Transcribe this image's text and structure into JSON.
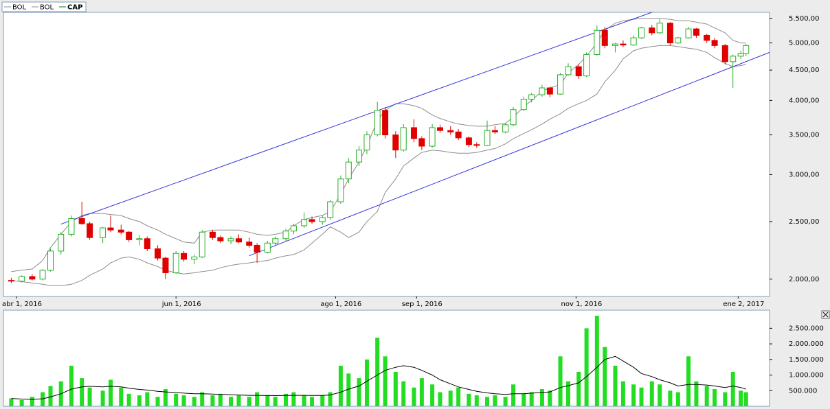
{
  "chart_data": [
    {
      "type": "candlestick",
      "x": [
        "2016-03-30",
        "2016-04-03",
        "2016-04-07",
        "2016-04-11",
        "2016-04-14",
        "2016-04-18",
        "2016-04-22",
        "2016-04-26",
        "2016-04-29",
        "2016-05-04",
        "2016-05-07",
        "2016-05-11",
        "2016-05-14",
        "2016-05-18",
        "2016-05-21",
        "2016-05-25",
        "2016-05-28",
        "2016-06-01",
        "2016-06-04",
        "2016-06-08",
        "2016-06-11",
        "2016-06-15",
        "2016-06-18",
        "2016-06-22",
        "2016-06-25",
        "2016-06-29",
        "2016-07-02",
        "2016-07-06",
        "2016-07-09",
        "2016-07-13",
        "2016-07-16",
        "2016-07-20",
        "2016-07-23",
        "2016-07-27",
        "2016-07-30",
        "2016-08-03",
        "2016-08-06",
        "2016-08-10",
        "2016-08-13",
        "2016-08-17",
        "2016-08-20",
        "2016-08-24",
        "2016-08-27",
        "2016-08-31",
        "2016-09-03",
        "2016-09-07",
        "2016-09-10",
        "2016-09-14",
        "2016-09-17",
        "2016-09-21",
        "2016-09-24",
        "2016-09-28",
        "2016-10-01",
        "2016-10-05",
        "2016-10-08",
        "2016-10-12",
        "2016-10-15",
        "2016-10-19",
        "2016-10-22",
        "2016-10-26",
        "2016-10-29",
        "2016-11-02",
        "2016-11-05",
        "2016-11-09",
        "2016-11-12",
        "2016-11-16",
        "2016-11-19",
        "2016-11-23",
        "2016-11-26",
        "2016-11-30",
        "2016-12-03",
        "2016-12-07",
        "2016-12-10",
        "2016-12-14",
        "2016-12-17",
        "2016-12-21",
        "2016-12-24",
        "2016-12-28",
        "2016-12-31",
        "2017-01-03",
        "2017-01-05"
      ],
      "series": [
        {
          "name": "BOL",
          "color": "#8c8c8c",
          "values": [
            2060,
            2070,
            2080,
            2150,
            2260,
            2380,
            2500,
            2560,
            2580,
            2580,
            2570,
            2560,
            2530,
            2500,
            2460,
            2420,
            2380,
            2340,
            2310,
            2300,
            2400,
            2420,
            2420,
            2420,
            2420,
            2400,
            2380,
            2370,
            2380,
            2400,
            2460,
            2520,
            2540,
            2560,
            2600,
            2780,
            2950,
            3150,
            3350,
            3700,
            3850,
            3950,
            3950,
            3920,
            3880,
            3780,
            3730,
            3680,
            3650,
            3630,
            3620,
            3620,
            3640,
            3660,
            3750,
            3900,
            4000,
            4150,
            4200,
            4250,
            4450,
            4600,
            4750,
            5000,
            5250,
            5400,
            5450,
            5480,
            5500,
            5500,
            5500,
            5480,
            5450,
            5450,
            5420,
            5380,
            5300,
            5200,
            5050,
            5000,
            5000
          ]
        },
        {
          "name": "BOL",
          "color": "#8c8c8c",
          "values": [
            1990,
            1980,
            1970,
            1960,
            1950,
            1950,
            1960,
            1990,
            2030,
            2080,
            2130,
            2170,
            2180,
            2160,
            2130,
            2100,
            2070,
            2050,
            2040,
            2050,
            2060,
            2070,
            2090,
            2110,
            2120,
            2130,
            2140,
            2150,
            2170,
            2190,
            2200,
            2240,
            2300,
            2380,
            2450,
            2400,
            2350,
            2400,
            2500,
            2600,
            2800,
            2950,
            3100,
            3200,
            3270,
            3300,
            3290,
            3270,
            3260,
            3260,
            3270,
            3300,
            3320,
            3380,
            3450,
            3520,
            3570,
            3650,
            3720,
            3800,
            3880,
            3950,
            4000,
            4100,
            4300,
            4500,
            4700,
            4850,
            4900,
            4930,
            4950,
            4950,
            4930,
            4900,
            4880,
            4820,
            4720,
            4620,
            4560,
            4580,
            4600
          ]
        },
        {
          "name": "CAP",
          "color": "#008000",
          "up_color": "#22b022",
          "down_color": "#e00000",
          "open": [
            1990,
            1985,
            2020,
            2000,
            2070,
            2230,
            2380,
            2530,
            2480,
            2350,
            2440,
            2420,
            2400,
            2330,
            2340,
            2250,
            2170,
            2050,
            2210,
            2160,
            2180,
            2400,
            2350,
            2320,
            2340,
            2310,
            2280,
            2220,
            2300,
            2340,
            2410,
            2460,
            2520,
            2500,
            2540,
            2700,
            2950,
            3150,
            3300,
            3500,
            3850,
            3500,
            3300,
            3600,
            3450,
            3350,
            3600,
            3560,
            3540,
            3460,
            3370,
            3360,
            3560,
            3540,
            3640,
            3860,
            4020,
            4090,
            4200,
            4100,
            4420,
            4560,
            4400,
            4780,
            5250,
            4950,
            4980,
            4960,
            5100,
            5300,
            5200,
            5400,
            5000,
            5100,
            5280,
            5150,
            5050,
            4950,
            4650,
            4750,
            4800
          ],
          "high": [
            2010,
            2030,
            2040,
            2080,
            2250,
            2400,
            2560,
            2700,
            2500,
            2450,
            2560,
            2470,
            2410,
            2370,
            2360,
            2280,
            2180,
            2230,
            2230,
            2200,
            2420,
            2420,
            2370,
            2360,
            2380,
            2350,
            2300,
            2320,
            2360,
            2430,
            2480,
            2590,
            2550,
            2560,
            2720,
            2990,
            3200,
            3350,
            3550,
            3980,
            3900,
            3550,
            3650,
            3720,
            3480,
            3650,
            3640,
            3620,
            3580,
            3480,
            3400,
            3700,
            3620,
            3660,
            3900,
            4060,
            4120,
            4250,
            4220,
            4450,
            4620,
            4600,
            4820,
            5350,
            5320,
            5000,
            5050,
            5150,
            5320,
            5360,
            5480,
            5420,
            5120,
            5320,
            5300,
            5180,
            5100,
            4980,
            4780,
            4850,
            4980
          ],
          "low": [
            1970,
            1975,
            1990,
            1990,
            2060,
            2200,
            2360,
            2470,
            2330,
            2300,
            2400,
            2380,
            2310,
            2280,
            2230,
            2150,
            2000,
            2040,
            2140,
            2120,
            2170,
            2330,
            2300,
            2290,
            2300,
            2260,
            2130,
            2210,
            2280,
            2320,
            2380,
            2440,
            2480,
            2470,
            2520,
            2680,
            2900,
            3100,
            3250,
            3480,
            3450,
            3200,
            3280,
            3400,
            3300,
            3330,
            3530,
            3500,
            3430,
            3340,
            3330,
            3350,
            3510,
            3520,
            3620,
            3840,
            3970,
            4060,
            4050,
            4090,
            4400,
            4350,
            4380,
            4760,
            4900,
            4820,
            4920,
            4940,
            5080,
            5150,
            5180,
            4950,
            4980,
            5080,
            5100,
            5000,
            4900,
            4600,
            4200,
            4700,
            4750
          ],
          "close": [
            1985,
            2020,
            2000,
            2070,
            2230,
            2380,
            2530,
            2480,
            2350,
            2440,
            2420,
            2400,
            2330,
            2340,
            2250,
            2170,
            2050,
            2210,
            2160,
            2180,
            2400,
            2350,
            2320,
            2340,
            2310,
            2280,
            2220,
            2300,
            2340,
            2410,
            2460,
            2520,
            2500,
            2540,
            2700,
            2950,
            3150,
            3300,
            3500,
            3850,
            3500,
            3300,
            3600,
            3450,
            3350,
            3600,
            3560,
            3540,
            3460,
            3370,
            3360,
            3560,
            3540,
            3640,
            3860,
            4020,
            4090,
            4200,
            4100,
            4420,
            4560,
            4400,
            4780,
            5250,
            4950,
            4980,
            4960,
            5100,
            5300,
            5200,
            5400,
            5000,
            5100,
            5280,
            5150,
            5050,
            4950,
            4650,
            4750,
            4800,
            4950
          ]
        }
      ],
      "log_scale": true,
      "ylim": [
        1870,
        5630
      ],
      "yticks": [
        {
          "value": 2000,
          "label": "2.000,00"
        },
        {
          "value": 2500,
          "label": "2.500,00"
        },
        {
          "value": 3000,
          "label": "3.000,00"
        },
        {
          "value": 3500,
          "label": "3.500,00"
        },
        {
          "value": 4000,
          "label": "4.000,00"
        },
        {
          "value": 4500,
          "label": "4.500,00"
        },
        {
          "value": 5000,
          "label": "5.000,00"
        },
        {
          "value": 5500,
          "label": "5.500,00"
        }
      ],
      "xlim": [
        "2016-03-27",
        "2017-01-14"
      ],
      "xticks": [
        {
          "value": "2016-04-01",
          "label": "abr 1, 2016"
        },
        {
          "value": "2016-06-01",
          "label": "jun 1, 2016"
        },
        {
          "value": "2016-08-01",
          "label": "ago 1, 2016"
        },
        {
          "value": "2016-09-01",
          "label": "sep 1, 2016"
        },
        {
          "value": "2016-11-01",
          "label": "nov 1, 2016"
        },
        {
          "value": "2017-01-02",
          "label": "ene 2, 2017"
        }
      ],
      "trend_lines": [
        {
          "color": "#3333dd",
          "points": [
            {
              "x": "2016-04-18",
              "y": 2476
            },
            {
              "x": "2016-11-30",
              "y": 5630
            }
          ]
        },
        {
          "color": "#3333dd",
          "points": [
            {
              "x": "2016-06-29",
              "y": 2190
            },
            {
              "x": "2017-01-14",
              "y": 4820
            }
          ]
        }
      ]
    },
    {
      "type": "bar",
      "color": "#22dd22",
      "values": [
        250000,
        200000,
        300000,
        450000,
        650000,
        800000,
        1300000,
        900000,
        600000,
        500000,
        850000,
        600000,
        400000,
        350000,
        450000,
        300000,
        550000,
        400000,
        350000,
        300000,
        450000,
        350000,
        400000,
        300000,
        350000,
        300000,
        450000,
        350000,
        300000,
        400000,
        450000,
        350000,
        300000,
        350000,
        450000,
        1300000,
        1050000,
        900000,
        1500000,
        2200000,
        1600000,
        1100000,
        800000,
        600000,
        900000,
        700000,
        450000,
        500000,
        600000,
        400000,
        350000,
        300000,
        350000,
        300000,
        700000,
        400000,
        450000,
        550000,
        500000,
        1600000,
        800000,
        1100000,
        2500000,
        2900000,
        1900000,
        1300000,
        800000,
        700000,
        600000,
        800000,
        700000,
        500000,
        450000,
        1600000,
        800000,
        650000,
        550000,
        450000,
        1100000,
        500000,
        450000
      ],
      "line": {
        "color": "#000000",
        "values": [
          250000,
          230000,
          220000,
          240000,
          300000,
          400000,
          550000,
          620000,
          640000,
          620000,
          640000,
          620000,
          580000,
          540000,
          520000,
          480000,
          460000,
          440000,
          420000,
          400000,
          400000,
          390000,
          380000,
          370000,
          360000,
          350000,
          350000,
          345000,
          340000,
          345000,
          350000,
          350000,
          345000,
          345000,
          360000,
          450000,
          550000,
          650000,
          800000,
          1000000,
          1150000,
          1250000,
          1300000,
          1250000,
          1150000,
          1000000,
          850000,
          720000,
          620000,
          540000,
          480000,
          430000,
          400000,
          380000,
          400000,
          400000,
          420000,
          440000,
          460000,
          600000,
          660000,
          750000,
          950000,
          1250000,
          1500000,
          1600000,
          1450000,
          1250000,
          1050000,
          950000,
          850000,
          750000,
          650000,
          700000,
          700000,
          680000,
          650000,
          600000,
          650000,
          600000,
          550000
        ]
      },
      "ylim": [
        0,
        3080000
      ],
      "yticks": [
        {
          "value": 500000,
          "label": "500.000"
        },
        {
          "value": 1000000,
          "label": "1.000.000"
        },
        {
          "value": 1500000,
          "label": "1.500.000"
        },
        {
          "value": 2000000,
          "label": "2.000.000"
        },
        {
          "value": 2500000,
          "label": "2.500.000"
        }
      ]
    }
  ]
}
